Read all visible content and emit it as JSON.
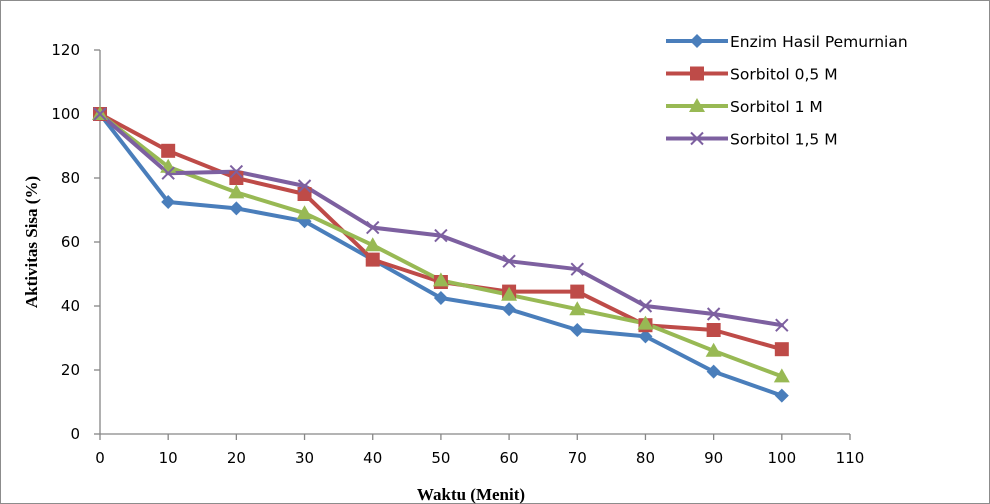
{
  "chart_data": {
    "type": "line",
    "title": "",
    "xlabel": "Waktu (Menit)",
    "ylabel": "Aktivitas Sisa (%)",
    "xlim": [
      0,
      110
    ],
    "ylim": [
      0,
      120
    ],
    "xticks": [
      0,
      10,
      20,
      30,
      40,
      50,
      60,
      70,
      80,
      90,
      100,
      110
    ],
    "yticks": [
      0,
      20,
      40,
      60,
      80,
      100,
      120
    ],
    "grid": false,
    "legend_position": "top-right",
    "x": [
      0,
      10,
      20,
      30,
      40,
      50,
      60,
      70,
      80,
      90,
      100
    ],
    "series": [
      {
        "name": "Enzim Hasil Pemurnian",
        "color": "#4a7ebb",
        "marker": "diamond",
        "values": [
          100,
          72.5,
          70.5,
          66.5,
          54.5,
          42.5,
          39,
          32.5,
          30.5,
          19.5,
          12
        ]
      },
      {
        "name": "Sorbitol 0,5 M",
        "color": "#be4b48",
        "marker": "square",
        "values": [
          100,
          88.5,
          80,
          75,
          54.5,
          47.5,
          44.5,
          44.5,
          34,
          32.5,
          26.5
        ]
      },
      {
        "name": "Sorbitol 1 M",
        "color": "#98b954",
        "marker": "triangle",
        "values": [
          100,
          83.5,
          75.5,
          69,
          59,
          48,
          43.5,
          39,
          34.5,
          26,
          18
        ]
      },
      {
        "name": "Sorbitol 1,5 M",
        "color": "#7d60a0",
        "marker": "x",
        "values": [
          100,
          81.5,
          82,
          77.5,
          64.5,
          62,
          54,
          51.5,
          40,
          37.5,
          34
        ]
      }
    ]
  }
}
